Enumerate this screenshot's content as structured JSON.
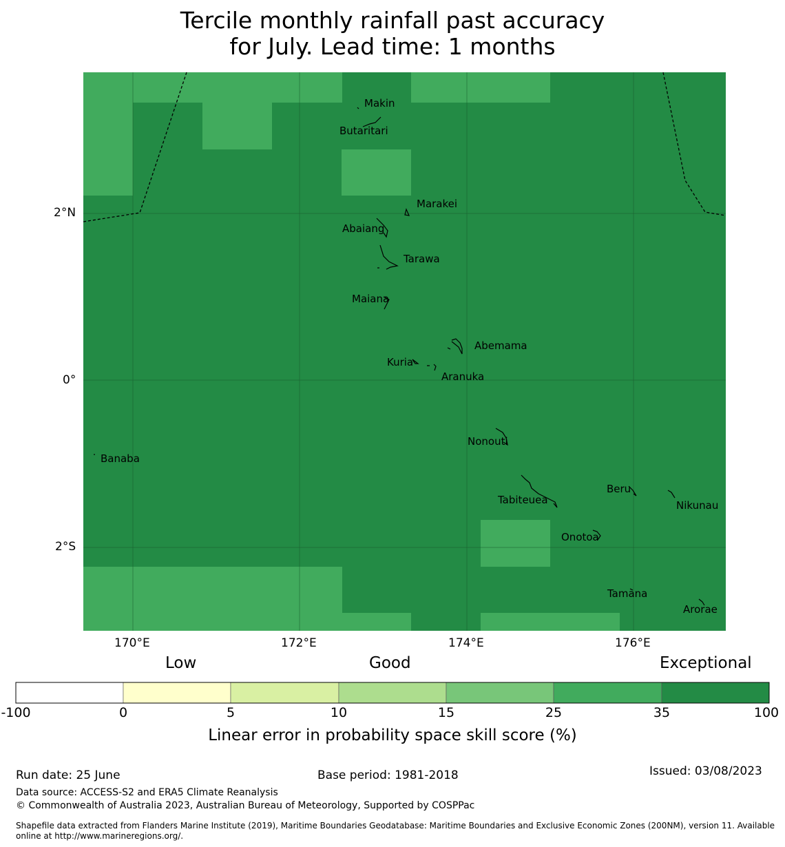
{
  "title": {
    "line1": "Tercile monthly rainfall past accuracy",
    "line2": "for July. Lead time: 1 months"
  },
  "map": {
    "lat_labels": [
      "2°N",
      "0°",
      "2°S"
    ],
    "lon_labels": [
      "170°E",
      "172°E",
      "174°E",
      "176°E"
    ],
    "islands": [
      "Makin",
      "Butaritari",
      "Marakei",
      "Abaiang",
      "Tarawa",
      "Maiana",
      "Abemama",
      "Kuria",
      "Aranuka",
      "Banaba",
      "Nonouti",
      "Beru",
      "Nikunau",
      "Tabiteuea",
      "Onotoa",
      "Tamana",
      "Arorae"
    ],
    "colors": {
      "exceptional": "#238b45",
      "very_good": "#41ab5d",
      "boundary": "#000000"
    }
  },
  "legend": {
    "categories": [
      "Low",
      "Good",
      "Exceptional"
    ],
    "bins": [
      "-100",
      "0",
      "5",
      "10",
      "15",
      "25",
      "35",
      "100"
    ],
    "colors": [
      "#ffffff",
      "#ffffcc",
      "#d9f0a3",
      "#addd8e",
      "#78c679",
      "#41ab5d",
      "#238b45"
    ],
    "axis_title": "Linear error in probability space skill score (%)"
  },
  "footer": {
    "run_date": "Run date: 25 June",
    "base_period": "Base period: 1981-2018",
    "issued": "Issued: 03/08/2023",
    "data_source": "Data source: ACCESS-S2 and ERA5 Climate Reanalysis",
    "copyright": "© Commonwealth of Australia 2023, Australian Bureau of Meteorology, Supported by COSPPac",
    "shapefile_line1": "Shapefile data extracted from Flanders Marine Institute (2019), Maritime Boundaries Geodatabase: Maritime Boundaries and Exclusive Economic Zones (200NM), version 11. Available",
    "shapefile_line2": "online at http://www.marineregions.org/."
  }
}
